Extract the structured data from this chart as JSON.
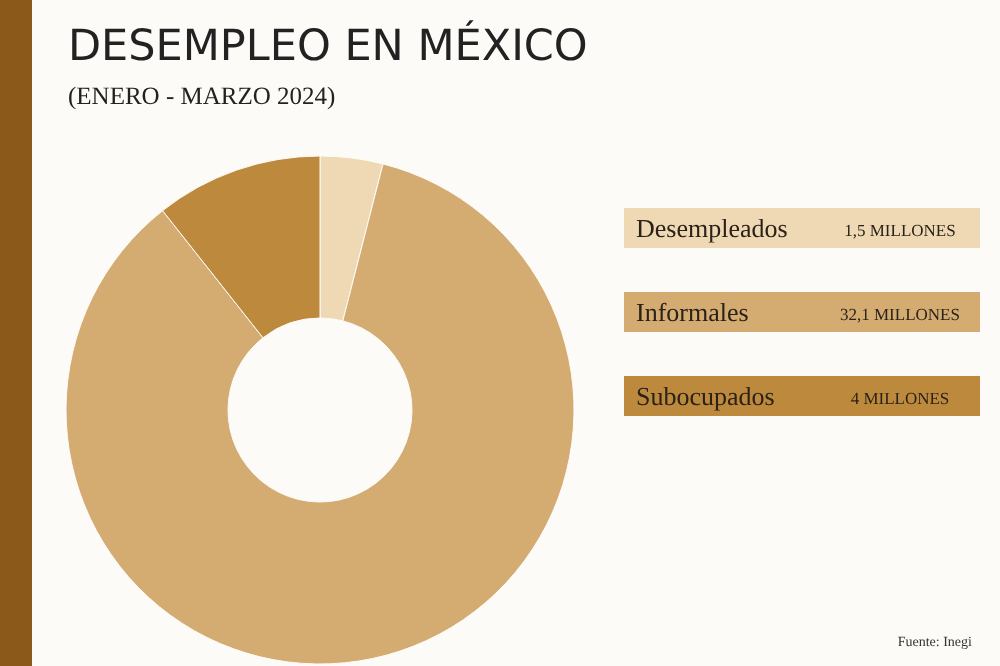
{
  "chart_data": {
    "type": "donut",
    "title": "DESEMPLEO EN MÉXICO",
    "subtitle": "(ENERO - MARZO 2024)",
    "categories": [
      "Desempleados",
      "Informales",
      "Subocupados"
    ],
    "values": [
      1.5,
      32.1,
      4
    ],
    "value_labels": [
      "1,5 MILLONES",
      "32,1 MILLONES",
      "4 MILLONES"
    ],
    "colors": [
      "#efd9b5",
      "#d4ac72",
      "#bd8a3d"
    ],
    "legend": "right",
    "annotations": [
      "Fuente: Inegi"
    ]
  }
}
